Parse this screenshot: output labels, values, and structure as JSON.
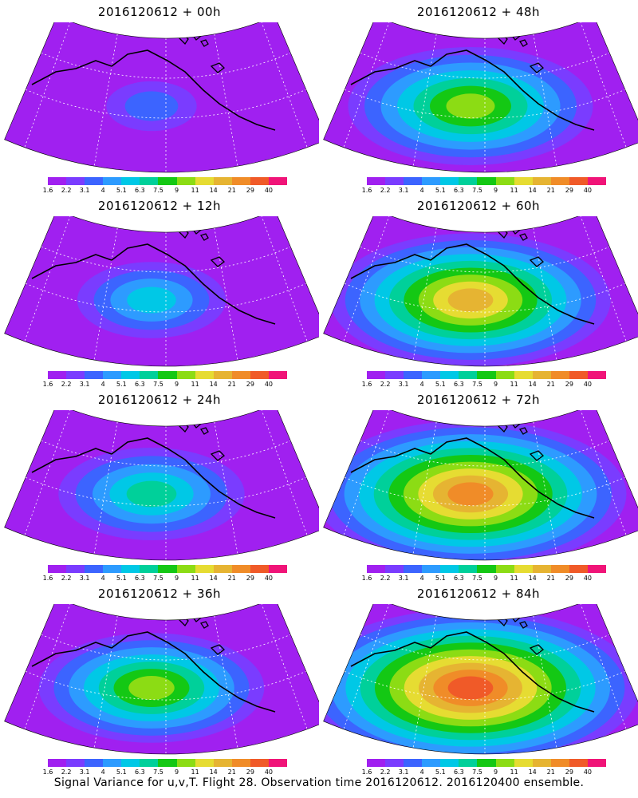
{
  "colorbar": {
    "labels": [
      "1.6",
      "2.2",
      "3.1",
      "4",
      "5.1",
      "6.3",
      "7.5",
      "9",
      "11",
      "14",
      "21",
      "29",
      "40"
    ],
    "colors": [
      "#a020f0",
      "#7a3cff",
      "#3c64ff",
      "#2d9bff",
      "#00c8e6",
      "#00d09a",
      "#14c814",
      "#8cdc14",
      "#e6dc32",
      "#e6b432",
      "#f08c28",
      "#f05a28",
      "#f01478"
    ]
  },
  "panels": [
    {
      "title": "2016120612 + 00h",
      "intensity": 0.15
    },
    {
      "title": "2016120612 + 48h",
      "intensity": 0.62
    },
    {
      "title": "2016120612 + 12h",
      "intensity": 0.32
    },
    {
      "title": "2016120612 + 60h",
      "intensity": 0.72
    },
    {
      "title": "2016120612 + 24h",
      "intensity": 0.44
    },
    {
      "title": "2016120612 + 72h",
      "intensity": 0.82
    },
    {
      "title": "2016120612 + 36h",
      "intensity": 0.55
    },
    {
      "title": "2016120612 + 84h",
      "intensity": 0.9
    }
  ],
  "caption": "Signal Variance for u,v,T. Flight 28. Observation time 2016120612. 2016120400 ensemble."
}
